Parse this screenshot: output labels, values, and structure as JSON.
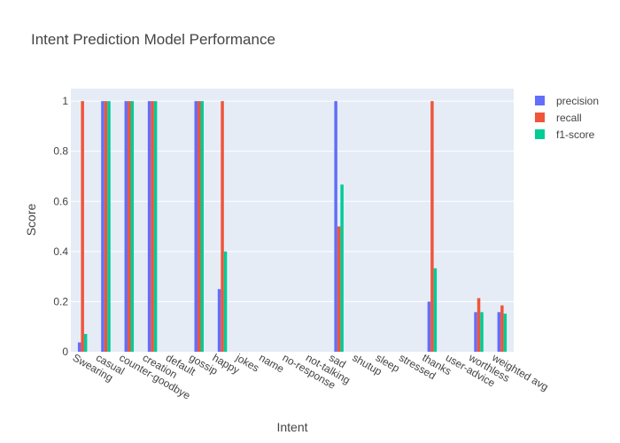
{
  "chart_data": {
    "type": "bar",
    "title": "Intent Prediction Model Performance",
    "xlabel": "Intent",
    "ylabel": "Score",
    "ylim": [
      0,
      1.05
    ],
    "yticks": [
      0,
      0.2,
      0.4,
      0.6,
      0.8,
      1
    ],
    "ytick_labels": [
      "0",
      "0.2",
      "0.4",
      "0.6",
      "0.8",
      "1"
    ],
    "grid": true,
    "legend_position": "top-right",
    "categories": [
      "Swearing",
      "casual",
      "counter-goodbye",
      "creation",
      "default",
      "gossip",
      "happy",
      "jokes",
      "name",
      "no-response",
      "not-talking",
      "sad",
      "shutup",
      "sleep",
      "stressed",
      "thanks",
      "user-advice",
      "worthless",
      "weighted avg"
    ],
    "series": [
      {
        "name": "precision",
        "color": "#636efa",
        "values": [
          0.037,
          1,
          1,
          1,
          0,
          1,
          0.25,
          0,
          0,
          0,
          0,
          1,
          0,
          0,
          0,
          0.2,
          0,
          0.158,
          0.158
        ]
      },
      {
        "name": "recall",
        "color": "#ef553b",
        "values": [
          1,
          1,
          1,
          1,
          0,
          1,
          1,
          0,
          0,
          0,
          0,
          0.5,
          0,
          0,
          0,
          1,
          0,
          0.214,
          0.185
        ]
      },
      {
        "name": "f1-score",
        "color": "#00cc96",
        "values": [
          0.071,
          1,
          1,
          1,
          0,
          1,
          0.4,
          0,
          0,
          0,
          0,
          0.667,
          0,
          0,
          0,
          0.333,
          0,
          0.158,
          0.152
        ]
      }
    ]
  }
}
